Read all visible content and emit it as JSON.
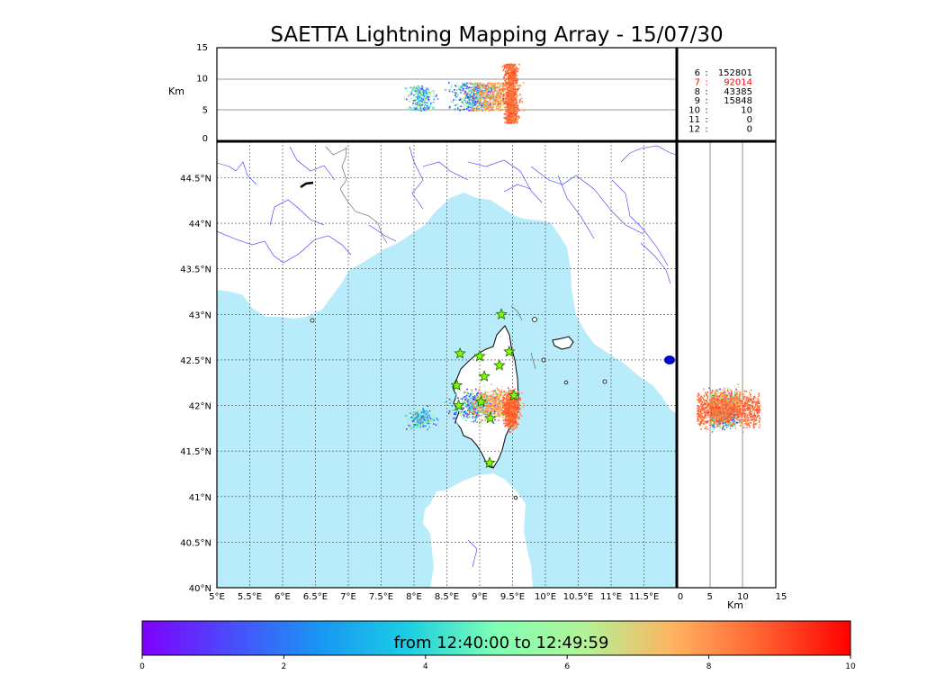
{
  "chart_data": {
    "type": "scatter",
    "title": "SAETTA Lightning Mapping Array - 15/07/30",
    "map": {
      "xlim": [
        5,
        12
      ],
      "ylim": [
        40,
        44.9
      ],
      "x_ticks": [
        "5°E",
        "5.5°E",
        "6°E",
        "6.5°E",
        "7°E",
        "7.5°E",
        "8°E",
        "8.5°E",
        "9°E",
        "9.5°E",
        "10°E",
        "10.5°E",
        "11°E",
        "11.5°E"
      ],
      "y_ticks": [
        "40°N",
        "40.5°N",
        "41°N",
        "41.5°N",
        "42°N",
        "42.5°N",
        "43°N",
        "43.5°N",
        "44°N",
        "44.5°N"
      ],
      "grid": true,
      "sea_color": "#b8ecfb",
      "coast_color": "#000000",
      "river_color": "#3333ff"
    },
    "altitude_vs_lon": {
      "ylabel": "Km",
      "ylim": [
        0,
        15
      ],
      "y_ticks": [
        "0",
        "5",
        "10",
        "15"
      ]
    },
    "altitude_vs_lat": {
      "xlabel": "Km",
      "xlim": [
        0,
        15
      ],
      "x_ticks": [
        "0",
        "5",
        "10",
        "15"
      ]
    },
    "station_counts": [
      {
        "stations": "6",
        "count": "152801",
        "color": "#000000"
      },
      {
        "stations": "7",
        "count": "92014",
        "color": "#ff0000"
      },
      {
        "stations": "8",
        "count": "43385",
        "color": "#000000"
      },
      {
        "stations": "9",
        "count": "15848",
        "color": "#000000"
      },
      {
        "stations": "10",
        "count": "10",
        "color": "#000000"
      },
      {
        "stations": "11",
        "count": "0",
        "color": "#000000"
      },
      {
        "stations": "12",
        "count": "0",
        "color": "#000000"
      }
    ],
    "sensors": [
      {
        "lon": 9.33,
        "lat": 43.0
      },
      {
        "lon": 8.7,
        "lat": 42.57
      },
      {
        "lon": 9.0,
        "lat": 42.54
      },
      {
        "lon": 9.45,
        "lat": 42.59
      },
      {
        "lon": 9.3,
        "lat": 42.44
      },
      {
        "lon": 9.07,
        "lat": 42.32
      },
      {
        "lon": 8.65,
        "lat": 42.22
      },
      {
        "lon": 9.52,
        "lat": 42.11
      },
      {
        "lon": 8.68,
        "lat": 42.0
      },
      {
        "lon": 9.02,
        "lat": 42.04
      },
      {
        "lon": 9.16,
        "lat": 41.86
      },
      {
        "lon": 9.15,
        "lat": 41.37
      }
    ],
    "lightning_clusters": [
      {
        "lon": 8.1,
        "lat": 41.86,
        "lon_spread": 0.09,
        "lat_spread": 0.05,
        "t_min": 0.5,
        "t_max": 7.5,
        "alt_min": 5.0,
        "alt_max": 9.0,
        "n": 260
      },
      {
        "lon": 8.95,
        "lat": 42.0,
        "lon_spread": 0.18,
        "lat_spread": 0.08,
        "t_min": 0.0,
        "t_max": 6.5,
        "alt_min": 5.0,
        "alt_max": 9.5,
        "n": 520
      },
      {
        "lon": 9.22,
        "lat": 42.02,
        "lon_spread": 0.18,
        "lat_spread": 0.08,
        "t_min": 6.5,
        "t_max": 8.8,
        "alt_min": 5.0,
        "alt_max": 9.5,
        "n": 520
      },
      {
        "lon": 9.47,
        "lat": 41.96,
        "lon_spread": 0.05,
        "lat_spread": 0.09,
        "t_min": 8.0,
        "t_max": 9.2,
        "alt_min": 3.0,
        "alt_max": 12.5,
        "n": 900
      }
    ],
    "colorbar": {
      "label": "from 12:40:00 to 12:49:59",
      "ticks": [
        "0",
        "2",
        "4",
        "6",
        "8",
        "10"
      ],
      "range": [
        0,
        10
      ],
      "colormap": "rainbow"
    }
  }
}
